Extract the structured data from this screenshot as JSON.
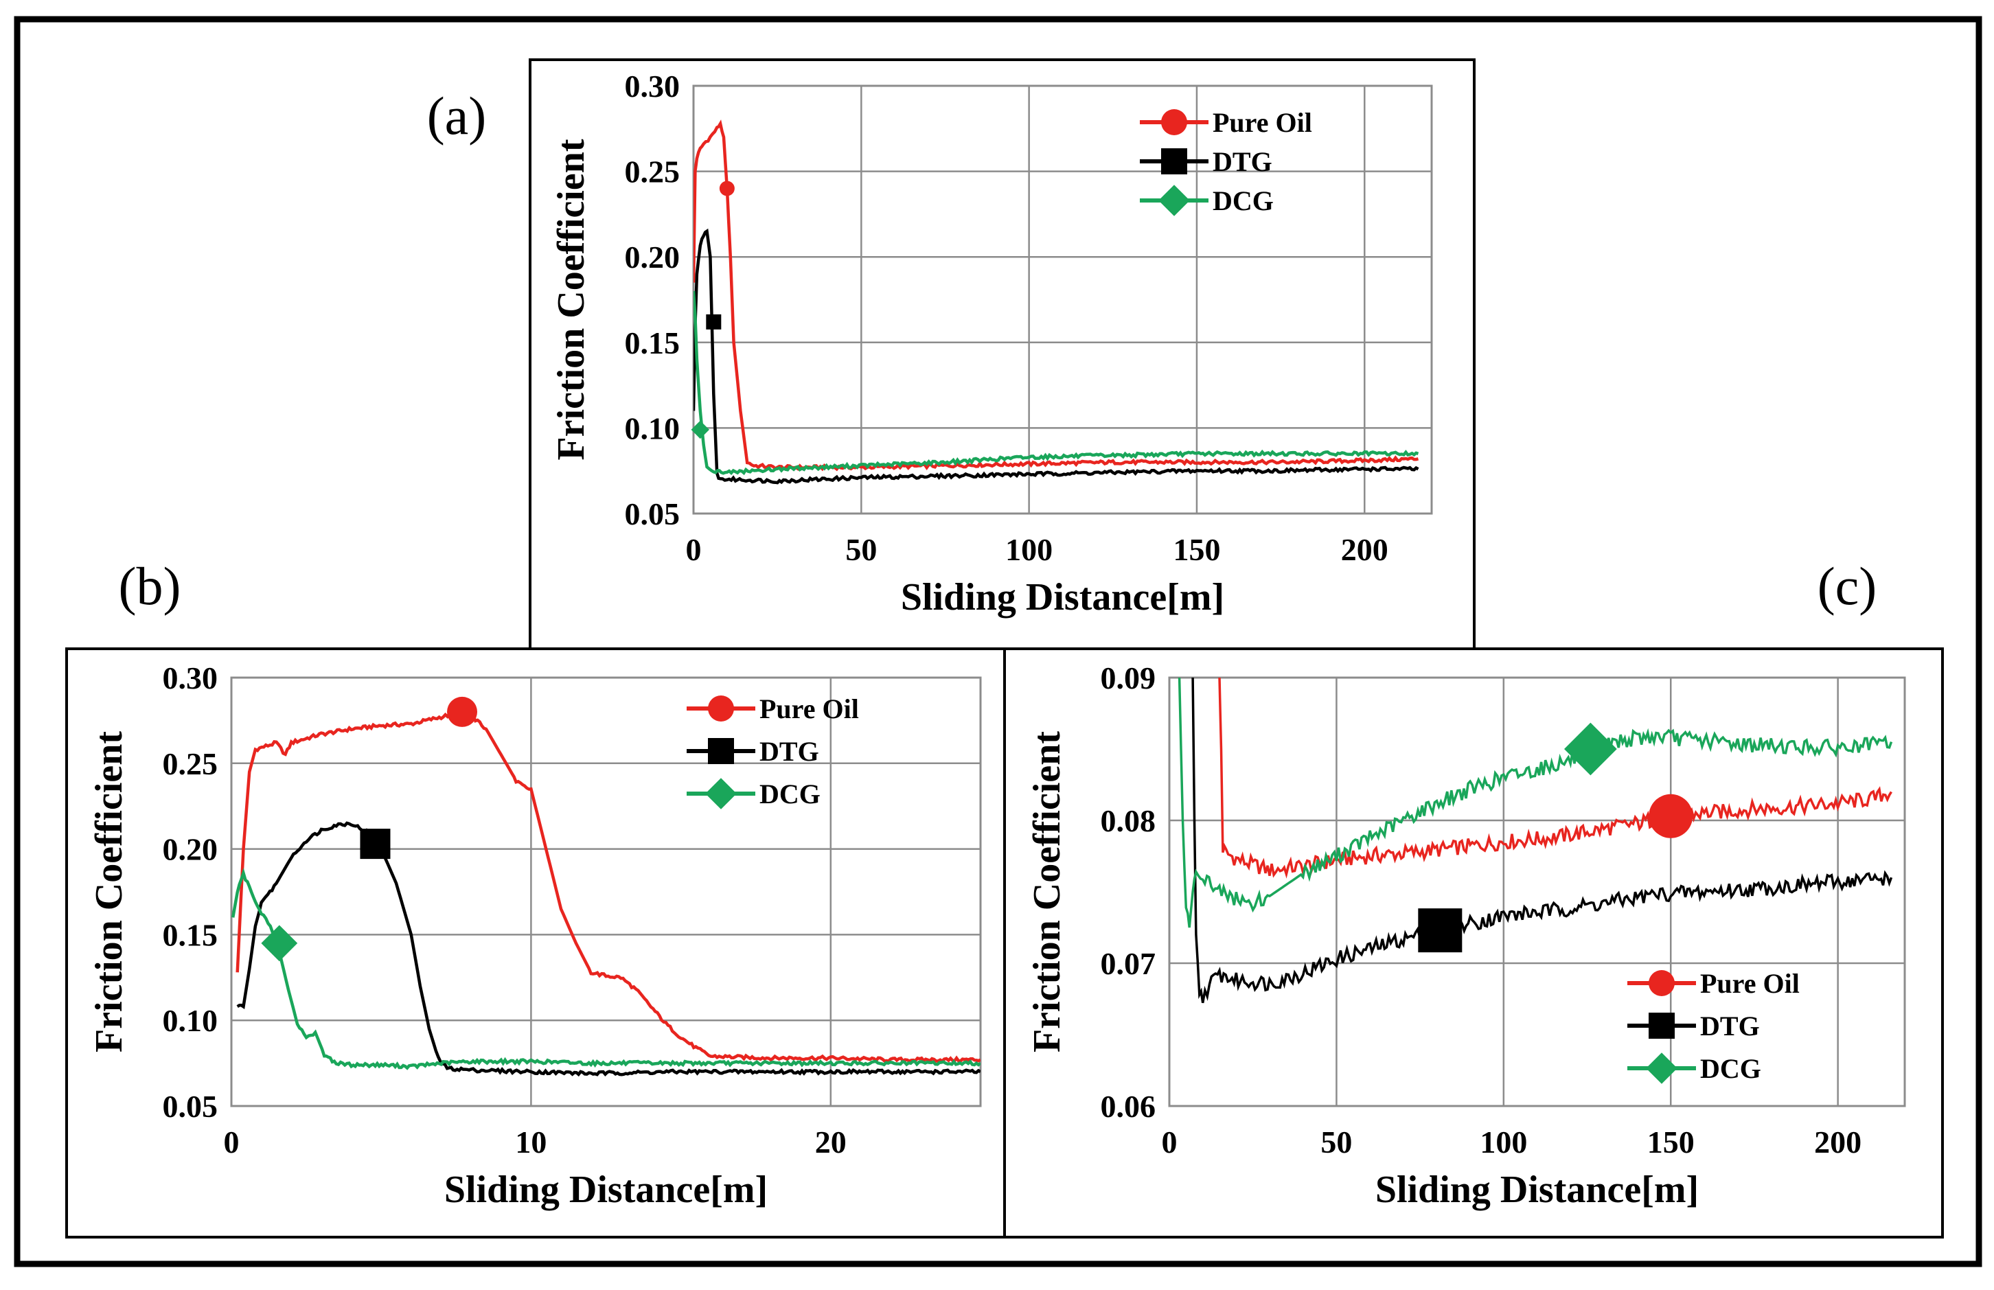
{
  "figure": {
    "colors": {
      "pure_oil": "#e8251f",
      "dtg": "#000000",
      "dcg": "#1aa65a"
    }
  },
  "chart_data": [
    {
      "id": "a",
      "panel_label": "(a)",
      "type": "line",
      "xlabel": "Sliding Distance[m]",
      "ylabel": "Friction Coefficient",
      "xlim": [
        0,
        220
      ],
      "ylim": [
        0.05,
        0.3
      ],
      "xticks": [
        0,
        50,
        100,
        150,
        200
      ],
      "yticks": [
        0.05,
        0.1,
        0.15,
        0.2,
        0.25,
        0.3
      ],
      "ytick_labels": [
        "0.05",
        "0.10",
        "0.15",
        "0.20",
        "0.25",
        "0.30"
      ],
      "xtick_labels": [
        "0",
        "50",
        "100",
        "150",
        "200"
      ],
      "grid": true,
      "legend_position": "top-right",
      "series": [
        {
          "name": "Pure Oil",
          "color": "#e8251f",
          "marker": "circle",
          "marker_at": [
            10,
            0.24
          ],
          "x": [
            0,
            0.5,
            1,
            2,
            3,
            5,
            7,
            8,
            9,
            10,
            11,
            12,
            14,
            16,
            18,
            25,
            50,
            75,
            100,
            125,
            150,
            175,
            200,
            216
          ],
          "y": [
            0.185,
            0.25,
            0.258,
            0.263,
            0.266,
            0.27,
            0.275,
            0.278,
            0.27,
            0.24,
            0.2,
            0.15,
            0.11,
            0.08,
            0.078,
            0.077,
            0.077,
            0.078,
            0.079,
            0.08,
            0.08,
            0.08,
            0.081,
            0.082
          ]
        },
        {
          "name": "DTG",
          "color": "#000000",
          "marker": "square",
          "marker_at": [
            6,
            0.162
          ],
          "x": [
            0,
            0.5,
            1,
            2,
            3,
            4,
            5,
            6,
            7,
            8,
            10,
            25,
            50,
            75,
            100,
            125,
            150,
            175,
            200,
            216
          ],
          "y": [
            0.11,
            0.16,
            0.19,
            0.207,
            0.213,
            0.215,
            0.2,
            0.12,
            0.073,
            0.07,
            0.07,
            0.069,
            0.071,
            0.072,
            0.073,
            0.074,
            0.075,
            0.075,
            0.076,
            0.076
          ]
        },
        {
          "name": "DCG",
          "color": "#1aa65a",
          "marker": "diamond",
          "marker_at": [
            2,
            0.099
          ],
          "x": [
            0,
            0.5,
            1,
            2,
            3,
            4,
            6,
            10,
            25,
            50,
            75,
            100,
            125,
            150,
            175,
            200,
            216
          ],
          "y": [
            0.18,
            0.165,
            0.14,
            0.11,
            0.09,
            0.078,
            0.075,
            0.074,
            0.076,
            0.078,
            0.08,
            0.083,
            0.084,
            0.085,
            0.085,
            0.085,
            0.085
          ]
        }
      ]
    },
    {
      "id": "b",
      "panel_label": "(b)",
      "type": "line",
      "xlabel": "Sliding Distance[m]",
      "ylabel": "Friction Coefficient",
      "xlim": [
        0,
        25
      ],
      "ylim": [
        0.05,
        0.3
      ],
      "xticks": [
        0,
        10,
        20
      ],
      "yticks": [
        0.05,
        0.1,
        0.15,
        0.2,
        0.25,
        0.3
      ],
      "ytick_labels": [
        "0.05",
        "0.10",
        "0.15",
        "0.20",
        "0.25",
        "0.30"
      ],
      "xtick_labels": [
        "0",
        "10",
        "20"
      ],
      "grid": true,
      "legend_position": "top-right",
      "series": [
        {
          "name": "Pure Oil",
          "color": "#e8251f",
          "marker": "circle",
          "marker_at": [
            7.7,
            0.28
          ],
          "x": [
            0.2,
            0.4,
            0.6,
            0.8,
            1.5,
            1.8,
            2.0,
            3,
            4,
            5,
            6,
            7,
            7.7,
            8,
            8.5,
            9,
            9.5,
            10,
            10.5,
            11,
            11.5,
            12,
            12.5,
            13,
            13.5,
            14,
            14.5,
            15,
            15.5,
            16,
            18,
            20,
            22,
            24,
            25
          ],
          "y": [
            0.128,
            0.2,
            0.245,
            0.258,
            0.262,
            0.255,
            0.262,
            0.267,
            0.27,
            0.272,
            0.273,
            0.277,
            0.28,
            0.278,
            0.27,
            0.255,
            0.24,
            0.235,
            0.2,
            0.165,
            0.145,
            0.128,
            0.126,
            0.125,
            0.118,
            0.108,
            0.098,
            0.09,
            0.084,
            0.079,
            0.078,
            0.078,
            0.077,
            0.077,
            0.077
          ]
        },
        {
          "name": "DTG",
          "color": "#000000",
          "marker": "square",
          "marker_at": [
            4.8,
            0.203
          ],
          "x": [
            0.2,
            0.4,
            0.6,
            0.8,
            1,
            1.5,
            2,
            2.5,
            3,
            3.5,
            4,
            4.5,
            5,
            5.5,
            6,
            6.3,
            6.6,
            6.9,
            7.2,
            8,
            10,
            12,
            15,
            20,
            25
          ],
          "y": [
            0.108,
            0.108,
            0.13,
            0.155,
            0.168,
            0.18,
            0.195,
            0.205,
            0.211,
            0.214,
            0.215,
            0.21,
            0.2,
            0.18,
            0.15,
            0.12,
            0.095,
            0.078,
            0.072,
            0.071,
            0.07,
            0.069,
            0.07,
            0.07,
            0.07
          ]
        },
        {
          "name": "DCG",
          "color": "#1aa65a",
          "marker": "diamond",
          "marker_at": [
            1.6,
            0.145
          ],
          "x": [
            0.05,
            0.2,
            0.4,
            0.6,
            0.8,
            1,
            1.3,
            1.6,
            1.9,
            2.2,
            2.5,
            2.8,
            3.1,
            3.5,
            4,
            5,
            6,
            7,
            8,
            9,
            10,
            12,
            15,
            20,
            25
          ],
          "y": [
            0.16,
            0.175,
            0.185,
            0.178,
            0.17,
            0.163,
            0.155,
            0.14,
            0.118,
            0.098,
            0.09,
            0.093,
            0.08,
            0.075,
            0.074,
            0.074,
            0.073,
            0.075,
            0.076,
            0.076,
            0.076,
            0.075,
            0.075,
            0.075,
            0.075
          ]
        }
      ]
    },
    {
      "id": "c",
      "panel_label": "(c)",
      "type": "line",
      "xlabel": "Sliding Distance[m]",
      "ylabel": "Friction Coefficient",
      "xlim": [
        0,
        220
      ],
      "ylim": [
        0.06,
        0.09
      ],
      "xticks": [
        0,
        50,
        100,
        150,
        200
      ],
      "yticks": [
        0.06,
        0.07,
        0.08,
        0.09
      ],
      "ytick_labels": [
        "0.06",
        "0.07",
        "0.08",
        "0.09"
      ],
      "xtick_labels": [
        "0",
        "50",
        "100",
        "150",
        "200"
      ],
      "grid": true,
      "legend_position": "bottom-right",
      "series": [
        {
          "name": "Pure Oil",
          "color": "#e8251f",
          "marker": "circle",
          "marker_at": [
            150,
            0.0803
          ],
          "x": [
            15,
            15.5,
            16,
            17,
            20,
            30,
            40,
            50,
            60,
            75,
            90,
            100,
            115,
            125,
            140,
            150,
            165,
            175,
            190,
            200,
            210,
            216
          ],
          "y": [
            0.09,
            0.085,
            0.078,
            0.0777,
            0.0773,
            0.0765,
            0.0768,
            0.0772,
            0.0775,
            0.0778,
            0.0782,
            0.0785,
            0.0788,
            0.0792,
            0.0798,
            0.0803,
            0.0806,
            0.0808,
            0.081,
            0.0812,
            0.0815,
            0.082
          ]
        },
        {
          "name": "DTG",
          "color": "#000000",
          "marker": "square",
          "marker_at": [
            81,
            0.0723
          ],
          "x": [
            7,
            7.5,
            8,
            9,
            10,
            12,
            15,
            20,
            30,
            40,
            50,
            60,
            70,
            81,
            90,
            100,
            115,
            130,
            145,
            160,
            175,
            190,
            200,
            216
          ],
          "y": [
            0.09,
            0.08,
            0.072,
            0.068,
            0.0676,
            0.0685,
            0.0692,
            0.0688,
            0.0686,
            0.0693,
            0.0703,
            0.071,
            0.0717,
            0.0723,
            0.0728,
            0.0733,
            0.0737,
            0.0742,
            0.0748,
            0.075,
            0.0752,
            0.0755,
            0.0757,
            0.076
          ]
        },
        {
          "name": "DCG",
          "color": "#1aa65a",
          "marker": "diamond",
          "marker_at": [
            126,
            0.085
          ],
          "x": [
            3,
            4,
            5,
            6,
            7,
            8,
            10,
            15,
            20,
            25,
            30,
            40,
            50,
            60,
            70,
            80,
            90,
            100,
            110,
            120,
            126,
            135,
            145,
            155,
            165,
            175,
            185,
            195,
            205,
            216
          ],
          "y": [
            0.09,
            0.08,
            0.0735,
            0.0725,
            0.075,
            0.0768,
            0.0762,
            0.075,
            0.0745,
            0.0742,
            0.0747,
            0.0763,
            0.0775,
            0.0788,
            0.08,
            0.0812,
            0.0822,
            0.083,
            0.0836,
            0.0842,
            0.085,
            0.0856,
            0.0859,
            0.0857,
            0.0855,
            0.0853,
            0.0852,
            0.0851,
            0.0851,
            0.0855
          ]
        }
      ]
    }
  ]
}
